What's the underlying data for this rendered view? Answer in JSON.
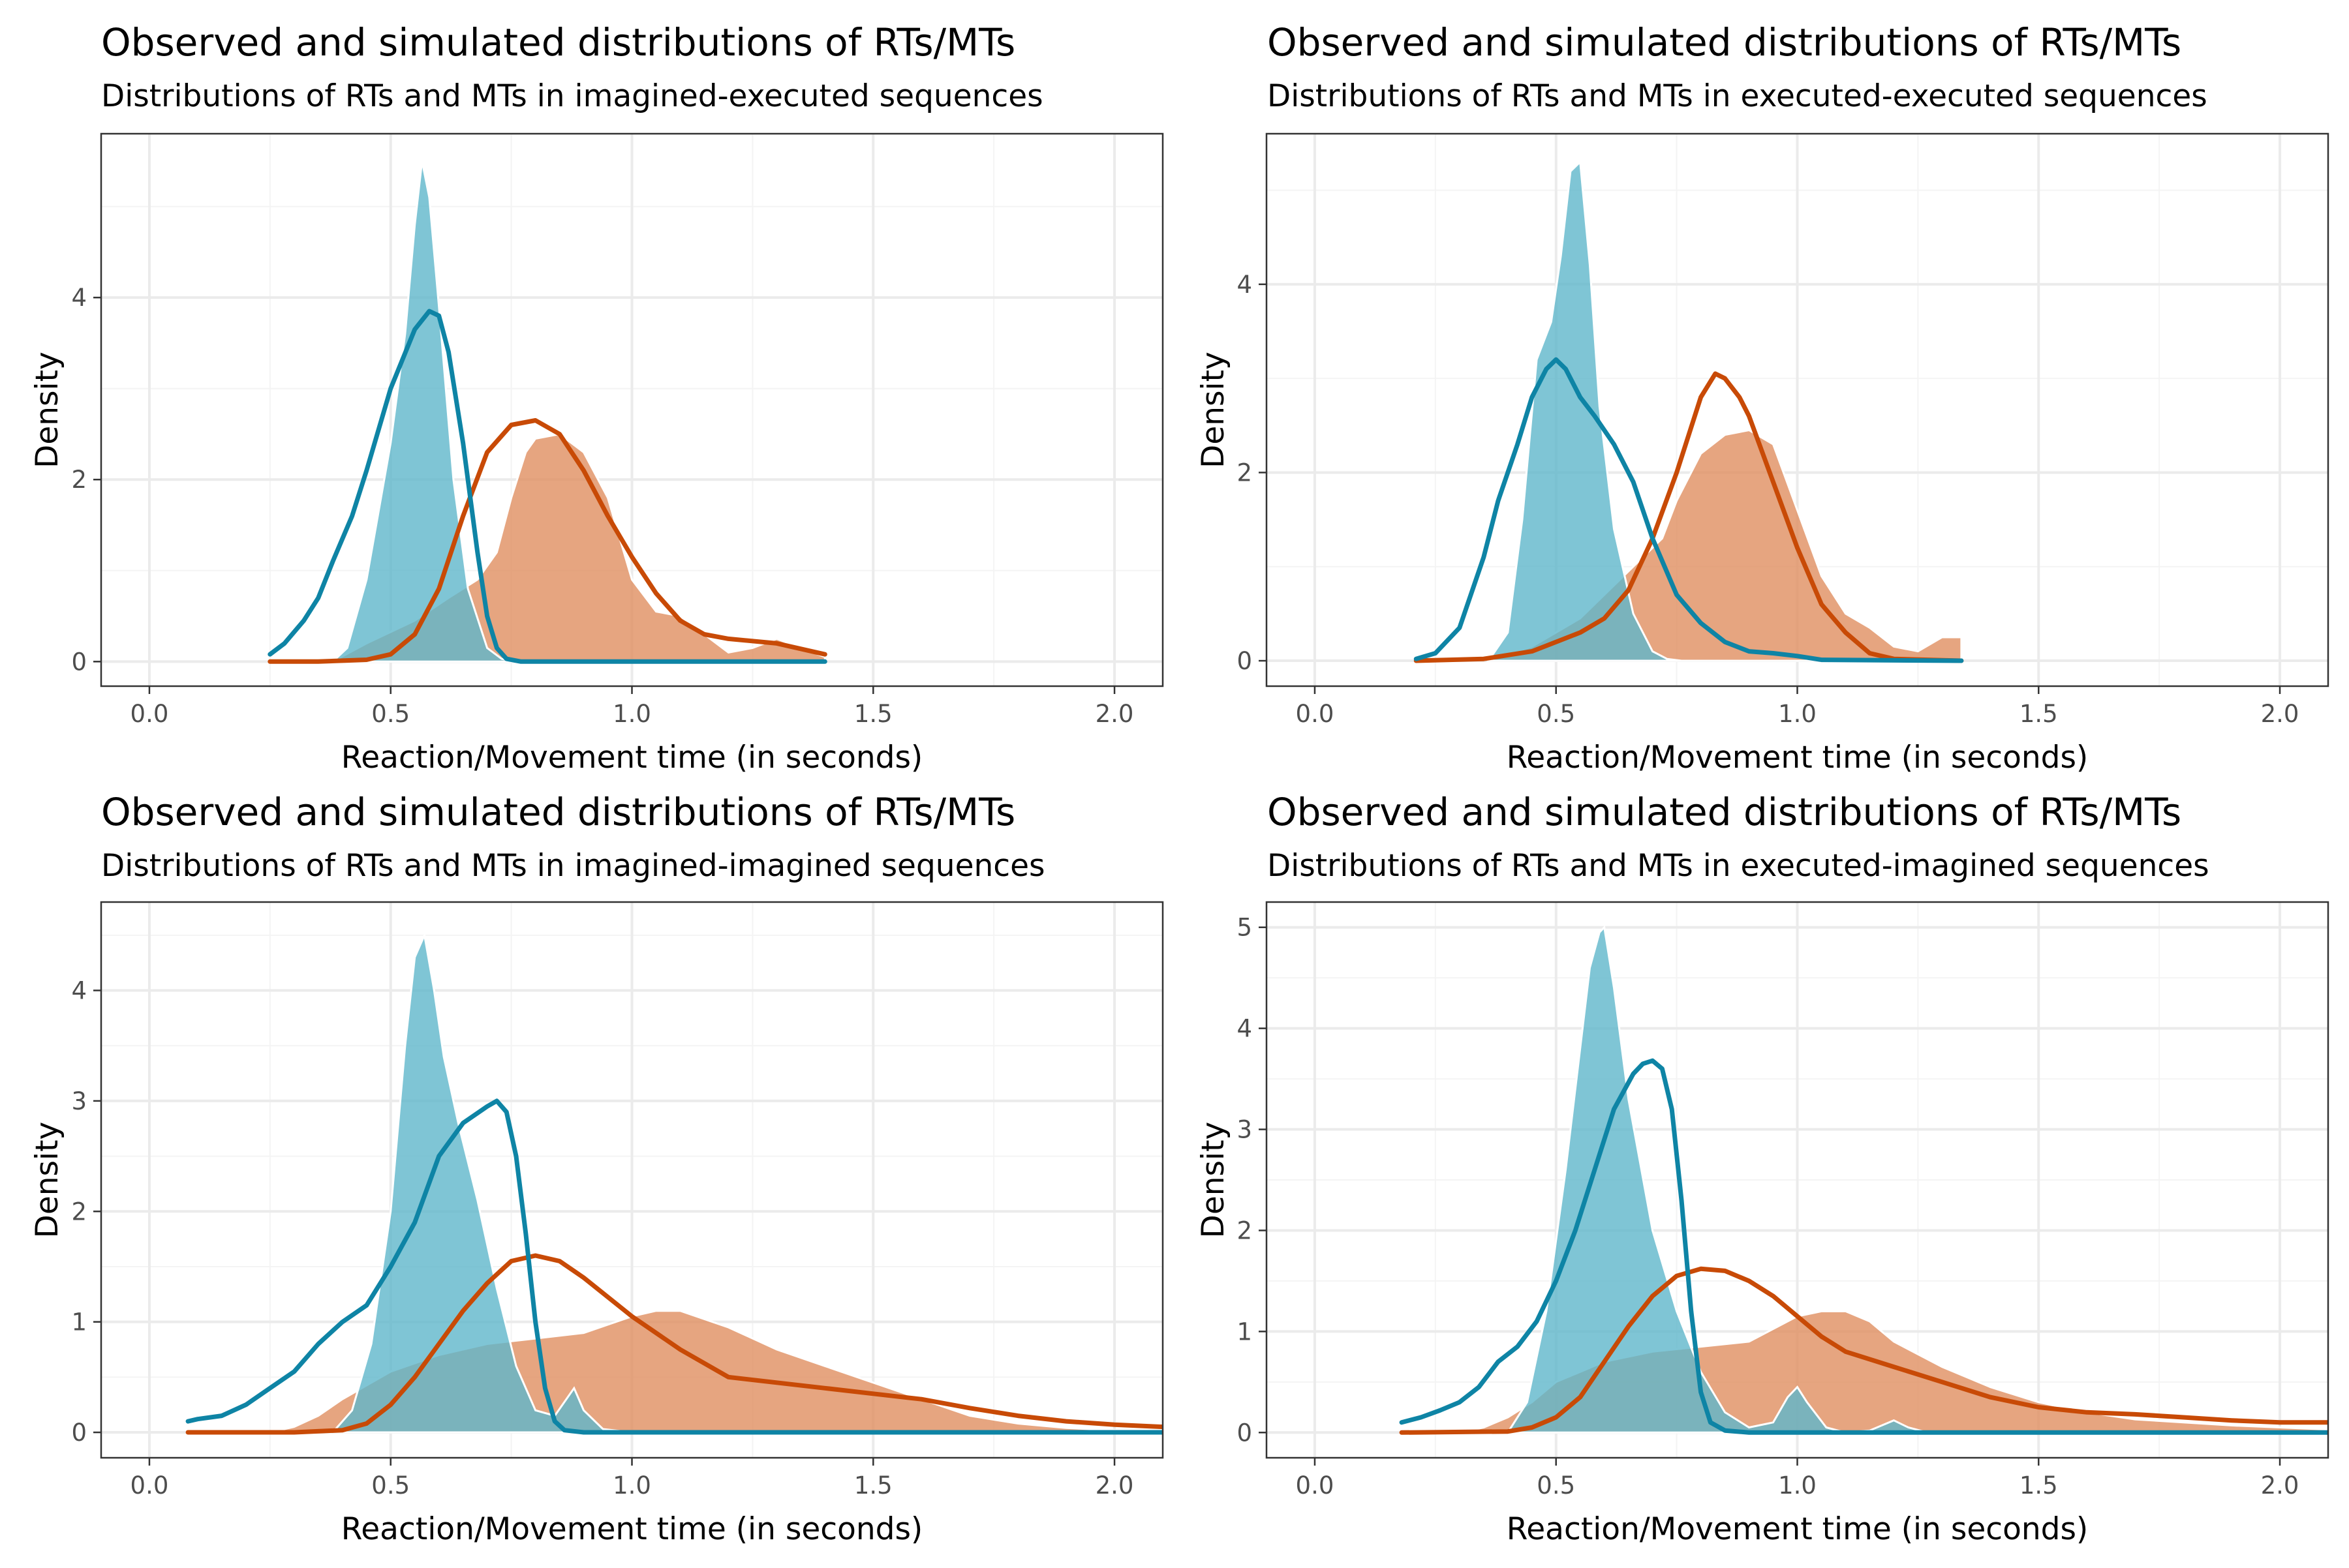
{
  "colors": {
    "rt": "#0e84a5",
    "rt_fill": "#5fb6cb",
    "mt": "#c84a06",
    "mt_fill": "#e08f60",
    "grid_major": "#ebebeb",
    "grid_minor": "#f4f4f4",
    "panel_border": "#333333",
    "tick_label": "#4d4d4d"
  },
  "chart_data": [
    {
      "type": "area",
      "title": "Observed and simulated distributions of RTs/MTs",
      "subtitle": "Distributions of RTs and MTs in imagined-executed sequences",
      "xlabel": "Reaction/Movement time (in seconds)",
      "ylabel": "Density",
      "xlim": [
        -0.1,
        2.1
      ],
      "ylim": [
        -0.27,
        5.8
      ],
      "x_ticks": [
        0.0,
        0.5,
        1.0,
        1.5,
        2.0
      ],
      "x_tick_labels": [
        "0.0",
        "0.5",
        "1.0",
        "1.5",
        "2.0"
      ],
      "y_ticks": [
        0,
        2,
        4
      ],
      "y_tick_labels": [
        "0",
        "2",
        "4"
      ],
      "grid": true,
      "legend": "none",
      "series": [
        {
          "role": "rt_filled_density",
          "x": [
            0.38,
            0.41,
            0.45,
            0.5,
            0.53,
            0.55,
            0.565,
            0.58,
            0.6,
            0.63,
            0.66,
            0.7,
            0.73,
            0.76
          ],
          "y": [
            0,
            0.15,
            0.9,
            2.4,
            3.6,
            4.8,
            5.5,
            5.1,
            3.9,
            2.0,
            0.8,
            0.15,
            0.03,
            0
          ]
        },
        {
          "role": "mt_filled_density",
          "x": [
            0.38,
            0.45,
            0.55,
            0.62,
            0.68,
            0.72,
            0.75,
            0.78,
            0.8,
            0.85,
            0.9,
            0.95,
            1.0,
            1.05,
            1.1,
            1.15,
            1.2,
            1.25,
            1.3,
            1.35,
            1.4
          ],
          "y": [
            0,
            0.2,
            0.45,
            0.7,
            0.9,
            1.2,
            1.8,
            2.3,
            2.45,
            2.5,
            2.3,
            1.8,
            0.9,
            0.55,
            0.5,
            0.3,
            0.1,
            0.15,
            0.25,
            0.15,
            0.05
          ]
        },
        {
          "role": "rt_line_density",
          "x": [
            0.25,
            0.28,
            0.32,
            0.35,
            0.38,
            0.42,
            0.45,
            0.5,
            0.55,
            0.58,
            0.6,
            0.62,
            0.65,
            0.68,
            0.7,
            0.72,
            0.74,
            0.77,
            0.8,
            1.0,
            1.4
          ],
          "y": [
            0.08,
            0.2,
            0.45,
            0.7,
            1.1,
            1.6,
            2.1,
            3.0,
            3.65,
            3.85,
            3.8,
            3.4,
            2.4,
            1.2,
            0.5,
            0.15,
            0.03,
            0,
            0,
            0,
            0
          ]
        },
        {
          "role": "mt_line_density",
          "x": [
            0.25,
            0.35,
            0.45,
            0.5,
            0.55,
            0.6,
            0.65,
            0.7,
            0.75,
            0.8,
            0.85,
            0.9,
            0.95,
            1.0,
            1.05,
            1.1,
            1.15,
            1.2,
            1.3,
            1.4
          ],
          "y": [
            0,
            0,
            0.02,
            0.08,
            0.3,
            0.8,
            1.6,
            2.3,
            2.6,
            2.65,
            2.5,
            2.1,
            1.6,
            1.15,
            0.75,
            0.45,
            0.3,
            0.25,
            0.2,
            0.08
          ]
        }
      ]
    },
    {
      "type": "area",
      "title": "Observed and simulated distributions of RTs/MTs",
      "subtitle": "Distributions of RTs and MTs in executed-executed sequences",
      "xlabel": "Reaction/Movement time (in seconds)",
      "ylabel": "Density",
      "xlim": [
        -0.1,
        2.1
      ],
      "ylim": [
        -0.27,
        5.6
      ],
      "x_ticks": [
        0.0,
        0.5,
        1.0,
        1.5,
        2.0
      ],
      "x_tick_labels": [
        "0.0",
        "0.5",
        "1.0",
        "1.5",
        "2.0"
      ],
      "y_ticks": [
        0,
        2,
        4
      ],
      "y_tick_labels": [
        "0",
        "2",
        "4"
      ],
      "grid": true,
      "legend": "none",
      "series": [
        {
          "role": "rt_filled_density",
          "x": [
            0.36,
            0.4,
            0.43,
            0.46,
            0.49,
            0.51,
            0.53,
            0.55,
            0.57,
            0.59,
            0.62,
            0.66,
            0.7,
            0.73,
            0.76
          ],
          "y": [
            0,
            0.3,
            1.5,
            3.2,
            3.6,
            4.3,
            5.2,
            5.3,
            4.2,
            2.7,
            1.4,
            0.5,
            0.1,
            0.02,
            0
          ]
        },
        {
          "role": "mt_filled_density",
          "x": [
            0.36,
            0.45,
            0.55,
            0.62,
            0.68,
            0.72,
            0.75,
            0.8,
            0.85,
            0.9,
            0.95,
            1.0,
            1.05,
            1.1,
            1.15,
            1.2,
            1.25,
            1.3,
            1.34
          ],
          "y": [
            0,
            0.15,
            0.45,
            0.8,
            1.1,
            1.3,
            1.7,
            2.2,
            2.4,
            2.45,
            2.3,
            1.6,
            0.9,
            0.5,
            0.35,
            0.15,
            0.1,
            0.25,
            0.25
          ]
        },
        {
          "role": "rt_line_density",
          "x": [
            0.21,
            0.25,
            0.3,
            0.35,
            0.38,
            0.42,
            0.45,
            0.48,
            0.5,
            0.52,
            0.55,
            0.58,
            0.62,
            0.66,
            0.7,
            0.75,
            0.8,
            0.85,
            0.9,
            0.95,
            1.0,
            1.05,
            1.34
          ],
          "y": [
            0.02,
            0.08,
            0.35,
            1.1,
            1.7,
            2.3,
            2.8,
            3.1,
            3.2,
            3.1,
            2.8,
            2.6,
            2.3,
            1.9,
            1.3,
            0.7,
            0.4,
            0.2,
            0.1,
            0.08,
            0.05,
            0.01,
            0
          ]
        },
        {
          "role": "mt_line_density",
          "x": [
            0.21,
            0.35,
            0.45,
            0.5,
            0.55,
            0.6,
            0.65,
            0.7,
            0.75,
            0.8,
            0.83,
            0.85,
            0.88,
            0.9,
            0.95,
            1.0,
            1.05,
            1.1,
            1.15,
            1.2,
            1.34
          ],
          "y": [
            0,
            0.02,
            0.1,
            0.2,
            0.3,
            0.45,
            0.75,
            1.3,
            2.0,
            2.8,
            3.05,
            3.0,
            2.8,
            2.6,
            1.9,
            1.2,
            0.6,
            0.3,
            0.08,
            0.02,
            0
          ]
        }
      ]
    },
    {
      "type": "area",
      "title": "Observed and simulated distributions of RTs/MTs",
      "subtitle": "Distributions of RTs and MTs in imagined-imagined sequences",
      "xlabel": "Reaction/Movement time (in seconds)",
      "ylabel": "Density",
      "xlim": [
        -0.1,
        2.1
      ],
      "ylim": [
        -0.23,
        4.8
      ],
      "x_ticks": [
        0.0,
        0.5,
        1.0,
        1.5,
        2.0
      ],
      "x_tick_labels": [
        "0.0",
        "0.5",
        "1.0",
        "1.5",
        "2.0"
      ],
      "y_ticks": [
        0,
        1,
        2,
        3,
        4
      ],
      "y_tick_labels": [
        "0",
        "1",
        "2",
        "3",
        "4"
      ],
      "grid": true,
      "legend": "none",
      "series": [
        {
          "role": "rt_filled_density",
          "x": [
            0.38,
            0.42,
            0.46,
            0.5,
            0.53,
            0.55,
            0.57,
            0.59,
            0.61,
            0.64,
            0.68,
            0.72,
            0.76,
            0.8,
            0.84,
            0.88,
            0.9,
            0.94,
            1.0
          ],
          "y": [
            0,
            0.2,
            0.8,
            2.0,
            3.5,
            4.3,
            4.5,
            4.0,
            3.4,
            2.8,
            2.1,
            1.3,
            0.6,
            0.2,
            0.15,
            0.4,
            0.2,
            0.03,
            0
          ]
        },
        {
          "role": "mt_filled_density",
          "x": [
            0.25,
            0.3,
            0.35,
            0.4,
            0.5,
            0.6,
            0.7,
            0.8,
            0.9,
            1.0,
            1.05,
            1.1,
            1.2,
            1.3,
            1.4,
            1.5,
            1.6,
            1.7,
            1.8,
            1.9,
            2.0,
            2.1
          ],
          "y": [
            0,
            0.05,
            0.15,
            0.3,
            0.55,
            0.7,
            0.8,
            0.85,
            0.9,
            1.05,
            1.1,
            1.1,
            0.95,
            0.75,
            0.6,
            0.45,
            0.3,
            0.15,
            0.08,
            0.04,
            0.02,
            0.01
          ]
        },
        {
          "role": "rt_line_density",
          "x": [
            0.08,
            0.1,
            0.15,
            0.2,
            0.25,
            0.3,
            0.35,
            0.4,
            0.45,
            0.5,
            0.55,
            0.6,
            0.65,
            0.7,
            0.72,
            0.74,
            0.76,
            0.78,
            0.8,
            0.82,
            0.84,
            0.86,
            0.9,
            1.0,
            2.1
          ],
          "y": [
            0.1,
            0.12,
            0.15,
            0.25,
            0.4,
            0.55,
            0.8,
            1.0,
            1.15,
            1.5,
            1.9,
            2.5,
            2.8,
            2.95,
            3.0,
            2.9,
            2.5,
            1.8,
            1.0,
            0.4,
            0.1,
            0.02,
            0,
            0,
            0
          ]
        },
        {
          "role": "mt_line_density",
          "x": [
            0.08,
            0.3,
            0.4,
            0.45,
            0.5,
            0.55,
            0.6,
            0.65,
            0.7,
            0.75,
            0.8,
            0.85,
            0.9,
            1.0,
            1.1,
            1.2,
            1.3,
            1.4,
            1.5,
            1.6,
            1.7,
            1.8,
            1.9,
            2.0,
            2.1
          ],
          "y": [
            0,
            0,
            0.02,
            0.08,
            0.25,
            0.5,
            0.8,
            1.1,
            1.35,
            1.55,
            1.6,
            1.55,
            1.4,
            1.05,
            0.75,
            0.5,
            0.45,
            0.4,
            0.35,
            0.3,
            0.22,
            0.15,
            0.1,
            0.07,
            0.05
          ]
        }
      ]
    },
    {
      "type": "area",
      "title": "Observed and simulated distributions of RTs/MTs",
      "subtitle": "Distributions of RTs and MTs in executed-imagined sequences",
      "xlabel": "Reaction/Movement time (in seconds)",
      "ylabel": "Density",
      "xlim": [
        -0.1,
        2.1
      ],
      "ylim": [
        -0.25,
        5.25
      ],
      "x_ticks": [
        0.0,
        0.5,
        1.0,
        1.5,
        2.0
      ],
      "x_tick_labels": [
        "0.0",
        "0.5",
        "1.0",
        "1.5",
        "2.0"
      ],
      "y_ticks": [
        0,
        1,
        2,
        3,
        4,
        5
      ],
      "y_tick_labels": [
        "0",
        "1",
        "2",
        "3",
        "4",
        "5"
      ],
      "grid": true,
      "legend": "none",
      "series": [
        {
          "role": "rt_filled_density",
          "x": [
            0.4,
            0.44,
            0.48,
            0.52,
            0.55,
            0.57,
            0.59,
            0.6,
            0.62,
            0.65,
            0.7,
            0.75,
            0.8,
            0.85,
            0.9,
            0.95,
            0.98,
            1.0,
            1.02,
            1.06,
            1.1,
            1.15,
            1.2,
            1.23,
            1.27
          ],
          "y": [
            0,
            0.3,
            1.2,
            2.6,
            3.8,
            4.6,
            4.95,
            5.0,
            4.4,
            3.3,
            2.0,
            1.2,
            0.6,
            0.2,
            0.05,
            0.1,
            0.35,
            0.45,
            0.3,
            0.05,
            0,
            0.02,
            0.12,
            0.05,
            0
          ]
        },
        {
          "role": "mt_filled_density",
          "x": [
            0.3,
            0.35,
            0.4,
            0.45,
            0.5,
            0.6,
            0.7,
            0.8,
            0.9,
            1.0,
            1.05,
            1.1,
            1.15,
            1.2,
            1.3,
            1.4,
            1.5,
            1.6,
            1.7,
            1.8,
            1.9,
            2.0,
            2.1
          ],
          "y": [
            0,
            0.05,
            0.15,
            0.3,
            0.5,
            0.7,
            0.8,
            0.85,
            0.9,
            1.15,
            1.2,
            1.2,
            1.1,
            0.9,
            0.65,
            0.45,
            0.3,
            0.2,
            0.13,
            0.1,
            0.07,
            0.05,
            0.03
          ]
        },
        {
          "role": "rt_line_density",
          "x": [
            0.18,
            0.22,
            0.26,
            0.3,
            0.34,
            0.38,
            0.42,
            0.46,
            0.5,
            0.54,
            0.58,
            0.62,
            0.66,
            0.68,
            0.7,
            0.72,
            0.74,
            0.76,
            0.78,
            0.8,
            0.82,
            0.85,
            0.9,
            1.0,
            2.1
          ],
          "y": [
            0.1,
            0.15,
            0.22,
            0.3,
            0.45,
            0.7,
            0.85,
            1.1,
            1.5,
            2.0,
            2.6,
            3.2,
            3.55,
            3.65,
            3.68,
            3.6,
            3.2,
            2.3,
            1.2,
            0.4,
            0.1,
            0.02,
            0,
            0,
            0
          ]
        },
        {
          "role": "mt_line_density",
          "x": [
            0.18,
            0.4,
            0.45,
            0.5,
            0.55,
            0.6,
            0.65,
            0.7,
            0.75,
            0.8,
            0.85,
            0.9,
            0.95,
            1.0,
            1.05,
            1.1,
            1.2,
            1.3,
            1.4,
            1.5,
            1.6,
            1.7,
            1.8,
            1.9,
            2.0,
            2.1
          ],
          "y": [
            0,
            0.01,
            0.05,
            0.15,
            0.35,
            0.7,
            1.05,
            1.35,
            1.55,
            1.62,
            1.6,
            1.5,
            1.35,
            1.15,
            0.95,
            0.8,
            0.65,
            0.5,
            0.35,
            0.25,
            0.2,
            0.18,
            0.15,
            0.12,
            0.1,
            0.1
          ]
        }
      ]
    }
  ]
}
